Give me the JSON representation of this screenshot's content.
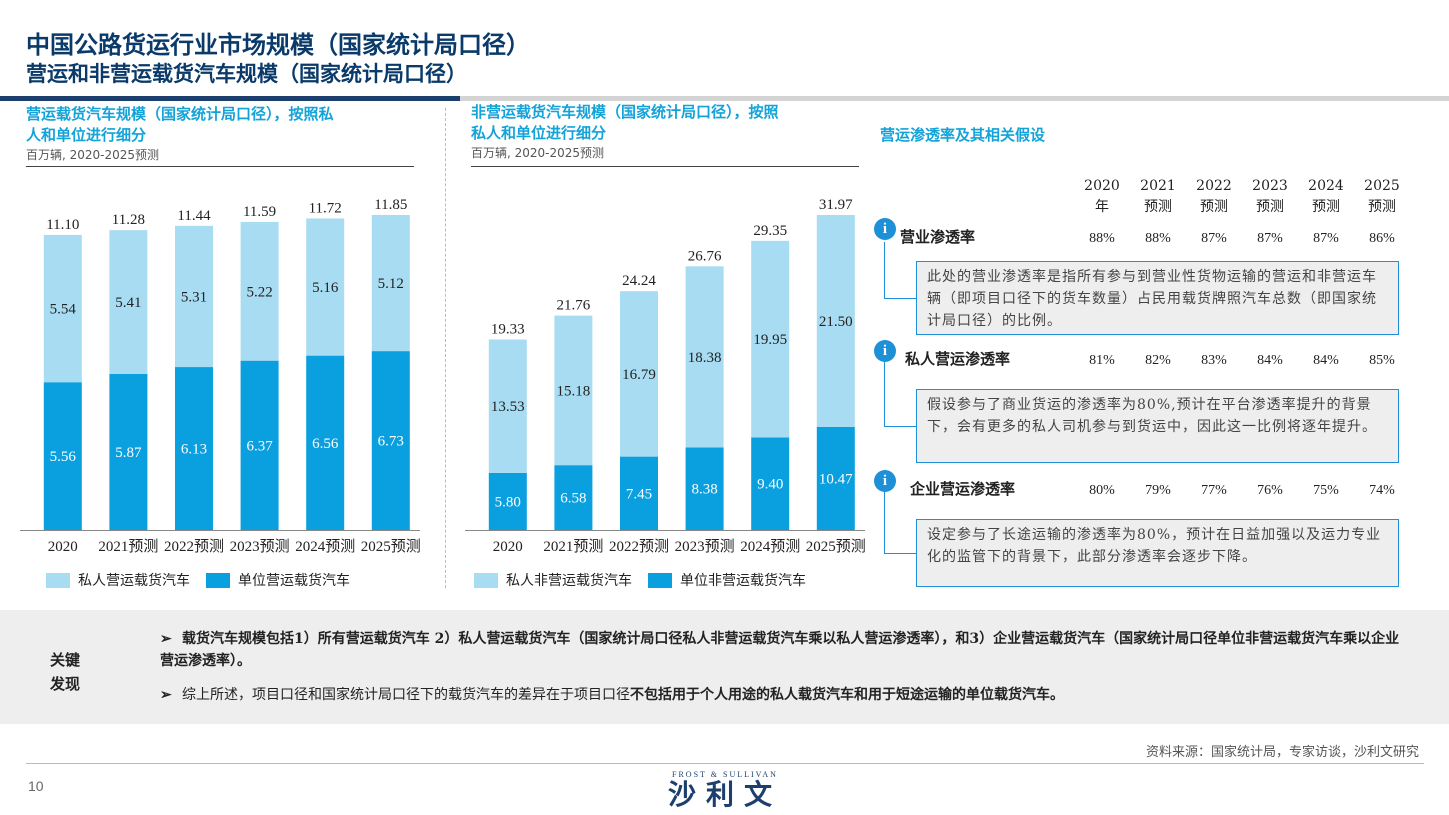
{
  "title": "中国公路货运行业市场规模（国家统计局口径）",
  "subtitle": "营运和非营运载货汽车规模（国家统计局口径）",
  "left_panel": {
    "title_line1": "营运载货汽车规模（国家统计局口径），按照私",
    "title_line2": "人和单位进行细分",
    "unit": "百万辆, 2020-2025预测",
    "legend": [
      "私人营运载货汽车",
      "单位营运载货汽车"
    ]
  },
  "mid_panel": {
    "title_line1": "非营运载货汽车规模（国家统计局口径），按照",
    "title_line2": "私人和单位进行细分",
    "unit": "百万辆, 2020-2025预测",
    "legend": [
      "私人非营运载货汽车",
      "单位非营运载货汽车"
    ]
  },
  "chart_data": [
    {
      "type": "bar",
      "stacked": true,
      "categories": [
        "2020",
        "2021预测",
        "2022预测",
        "2023预测",
        "2024预测",
        "2025预测"
      ],
      "series": [
        {
          "name": "单位营运载货汽车",
          "values": [
            5.56,
            5.87,
            6.13,
            6.37,
            6.56,
            6.73
          ]
        },
        {
          "name": "私人营运载货汽车",
          "values": [
            5.54,
            5.41,
            5.31,
            5.22,
            5.16,
            5.12
          ]
        }
      ],
      "totals": [
        "11.10",
        "11.28",
        "11.44",
        "11.59",
        "11.72",
        "11.85"
      ],
      "ymax": 11.85
    },
    {
      "type": "bar",
      "stacked": true,
      "categories": [
        "2020",
        "2021预测",
        "2022预测",
        "2023预测",
        "2024预测",
        "2025预测"
      ],
      "series": [
        {
          "name": "单位非营运载货汽车",
          "values": [
            5.8,
            6.58,
            7.45,
            8.38,
            9.4,
            10.47
          ]
        },
        {
          "name": "私人非营运载货汽车",
          "values": [
            13.53,
            15.18,
            16.79,
            18.38,
            19.95,
            21.5
          ]
        }
      ],
      "totals": [
        "19.33",
        "21.76",
        "24.24",
        "26.76",
        "29.35",
        "31.97"
      ],
      "ymax": 31.97
    }
  ],
  "colors": {
    "light": "#a8dcf2",
    "dark": "#0aa0e0",
    "title": "#0a3a6a",
    "accent": "#14a3d9"
  },
  "right_panel": {
    "title": "营运渗透率及其相关假设",
    "years": [
      [
        "2020",
        "年"
      ],
      [
        "2021",
        "预测"
      ],
      [
        "2022",
        "预测"
      ],
      [
        "2023",
        "预测"
      ],
      [
        "2024",
        "预测"
      ],
      [
        "2025",
        "预测"
      ]
    ],
    "metrics": [
      {
        "label": "营业渗透率",
        "values": [
          "88%",
          "88%",
          "87%",
          "87%",
          "87%",
          "86%"
        ],
        "note": "此处的营业渗透率是指所有参与到营业性货物运输的营运和非营运车辆（即项目口径下的货车数量）占民用载货牌照汽车总数（即国家统计局口径）的比例。"
      },
      {
        "label": "私人营运渗透率",
        "values": [
          "81%",
          "82%",
          "83%",
          "84%",
          "84%",
          "85%"
        ],
        "note": "假设参与了商业货运的渗透率为80%,预计在平台渗透率提升的背景下，会有更多的私人司机参与到货运中，因此这一比例将逐年提升。"
      },
      {
        "label": "企业营运渗透率",
        "values": [
          "80%",
          "79%",
          "77%",
          "76%",
          "75%",
          "74%"
        ],
        "note": "设定参与了长途运输的渗透率为80%，预计在日益加强以及运力专业化的监管下的背景下，此部分渗透率会逐步下降。"
      }
    ]
  },
  "findings": {
    "label": "关键发现",
    "items": [
      "载货汽车规模包括1）所有营运载货汽车 2）私人营运载货汽车（国家统计局口径私人非营运载货汽车乘以私人营运渗透率），和3）企业营运载货汽车（国家统计局口径单位非营运载货汽车乘以企业营运渗透率）。",
      [
        "综上所述，项目口径和国家统计局口径下的载货汽车的差异在于项目口径",
        "不包括用于个人用途的私人载货汽车和用于短途运输的单位载货汽车。"
      ]
    ]
  },
  "source": "资料来源：国家统计局，专家访谈，沙利文研究",
  "page_number": "10",
  "logo": {
    "en": "FROST & SULLIVAN",
    "cn": "沙利文"
  }
}
